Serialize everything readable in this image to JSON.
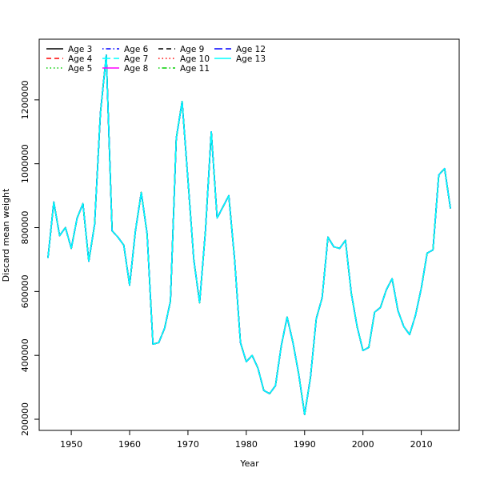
{
  "chart_data": {
    "type": "line",
    "title": "",
    "xlabel": "Year",
    "ylabel": "Discard mean weight",
    "xlim": [
      1944.5,
      2016.5
    ],
    "ylim": [
      165000,
      1390000
    ],
    "xticks": [
      1950,
      1960,
      1970,
      1980,
      1990,
      2000,
      2010
    ],
    "yticks": [
      200000,
      400000,
      600000,
      800000,
      1000000,
      1200000
    ],
    "grid": false,
    "legend_position": "top-left",
    "x": [
      1946,
      1947,
      1948,
      1949,
      1950,
      1951,
      1952,
      1953,
      1954,
      1955,
      1956,
      1957,
      1958,
      1959,
      1960,
      1961,
      1962,
      1963,
      1964,
      1965,
      1966,
      1967,
      1968,
      1969,
      1970,
      1971,
      1972,
      1973,
      1974,
      1975,
      1976,
      1977,
      1978,
      1979,
      1980,
      1981,
      1982,
      1983,
      1984,
      1985,
      1986,
      1987,
      1988,
      1989,
      1990,
      1991,
      1992,
      1993,
      1994,
      1995,
      1996,
      1997,
      1998,
      1999,
      2000,
      2001,
      2002,
      2003,
      2004,
      2005,
      2006,
      2007,
      2008,
      2009,
      2010,
      2011,
      2012,
      2013,
      2014,
      2015
    ],
    "values": [
      705000,
      880000,
      775000,
      800000,
      735000,
      830000,
      875000,
      695000,
      810000,
      1160000,
      1340000,
      790000,
      770000,
      745000,
      620000,
      790000,
      910000,
      780000,
      435000,
      440000,
      485000,
      570000,
      1080000,
      1195000,
      950000,
      700000,
      565000,
      790000,
      1100000,
      830000,
      865000,
      900000,
      700000,
      440000,
      380000,
      400000,
      360000,
      290000,
      280000,
      305000,
      430000,
      520000,
      440000,
      340000,
      215000,
      330000,
      515000,
      580000,
      770000,
      740000,
      735000,
      760000,
      595000,
      490000,
      415000,
      425000,
      535000,
      550000,
      605000,
      640000,
      540000,
      490000,
      465000,
      525000,
      610000,
      720000,
      730000,
      965000,
      985000,
      860000
    ],
    "series": [
      {
        "name": "Age 3",
        "color": "#000000",
        "dash": "solid"
      },
      {
        "name": "Age 4",
        "color": "#ff0000",
        "dash": "dashed"
      },
      {
        "name": "Age 5",
        "color": "#00cd00",
        "dash": "dotted"
      },
      {
        "name": "Age 6",
        "color": "#0000ff",
        "dash": "dotdash"
      },
      {
        "name": "Age 7",
        "color": "#00ffff",
        "dash": "longdash"
      },
      {
        "name": "Age 8",
        "color": "#ff00ff",
        "dash": "solid"
      },
      {
        "name": "Age 9",
        "color": "#000000",
        "dash": "dashed"
      },
      {
        "name": "Age 10",
        "color": "#ff0000",
        "dash": "dotted"
      },
      {
        "name": "Age 11",
        "color": "#00cd00",
        "dash": "dotdash"
      },
      {
        "name": "Age 12",
        "color": "#0000ff",
        "dash": "longdash"
      },
      {
        "name": "Age 13",
        "color": "#00ffff",
        "dash": "solid"
      }
    ]
  }
}
